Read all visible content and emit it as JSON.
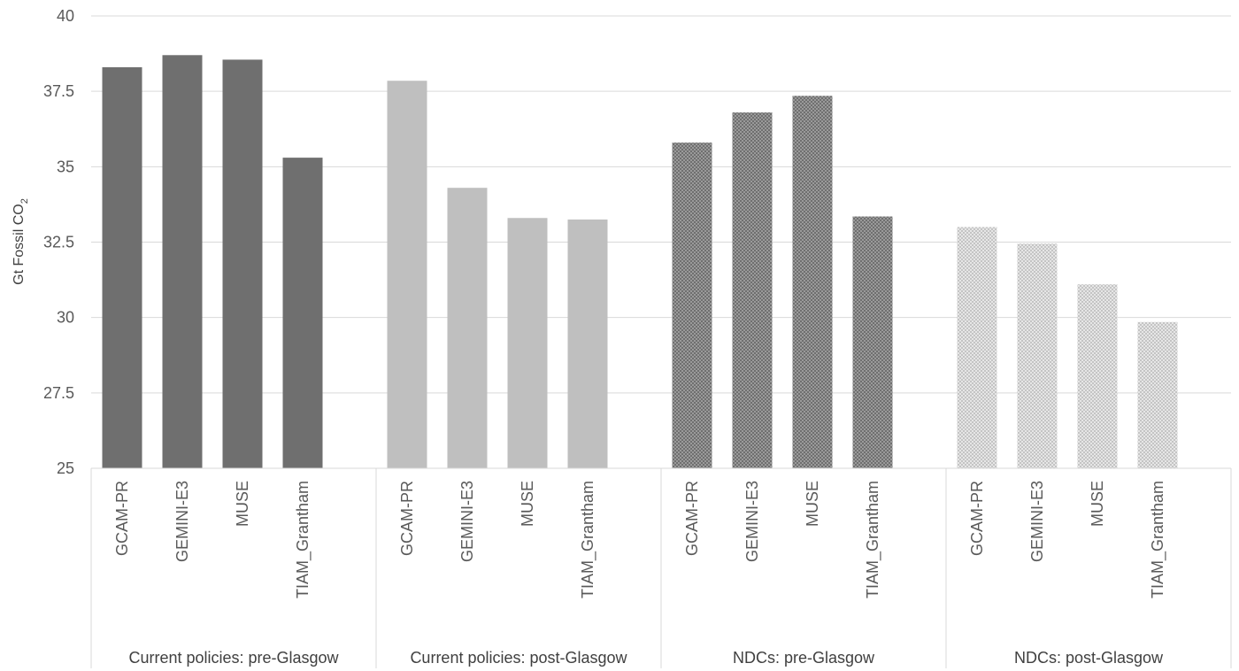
{
  "chart_data": {
    "type": "bar",
    "ylabel": "Gt Fossil CO",
    "ylabel_subscript": "2",
    "ylim": [
      25,
      40
    ],
    "yticks": [
      25,
      27.5,
      30,
      32.5,
      35,
      37.5,
      40
    ],
    "ytick_labels": [
      "25",
      "27.5",
      "30",
      "32.5",
      "35",
      "37.5",
      "40"
    ],
    "grid": true,
    "groups": [
      {
        "name": "Current policies: pre-Glasgow",
        "fill": "solid",
        "color": "#6f6f6f",
        "categories": [
          "GCAM-PR",
          "GEMINI-E3",
          "MUSE",
          "TIAM_Grantham"
        ],
        "values": [
          38.3,
          38.7,
          38.55,
          35.3
        ]
      },
      {
        "name": "Current policies: post-Glasgow",
        "fill": "solid",
        "color": "#bfbfbf",
        "categories": [
          "GCAM-PR",
          "GEMINI-E3",
          "MUSE",
          "TIAM_Grantham"
        ],
        "values": [
          37.85,
          34.3,
          33.3,
          33.25
        ]
      },
      {
        "name": "NDCs: pre-Glasgow",
        "fill": "pattern",
        "color": "#6f6f6f",
        "categories": [
          "GCAM-PR",
          "GEMINI-E3",
          "MUSE",
          "TIAM_Grantham"
        ],
        "values": [
          35.8,
          36.8,
          37.35,
          33.35
        ]
      },
      {
        "name": "NDCs: post-Glasgow",
        "fill": "pattern",
        "color": "#c4c4c4",
        "categories": [
          "GCAM-PR",
          "GEMINI-E3",
          "MUSE",
          "TIAM_Grantham"
        ],
        "values": [
          33.0,
          32.45,
          31.1,
          29.85
        ]
      }
    ]
  }
}
